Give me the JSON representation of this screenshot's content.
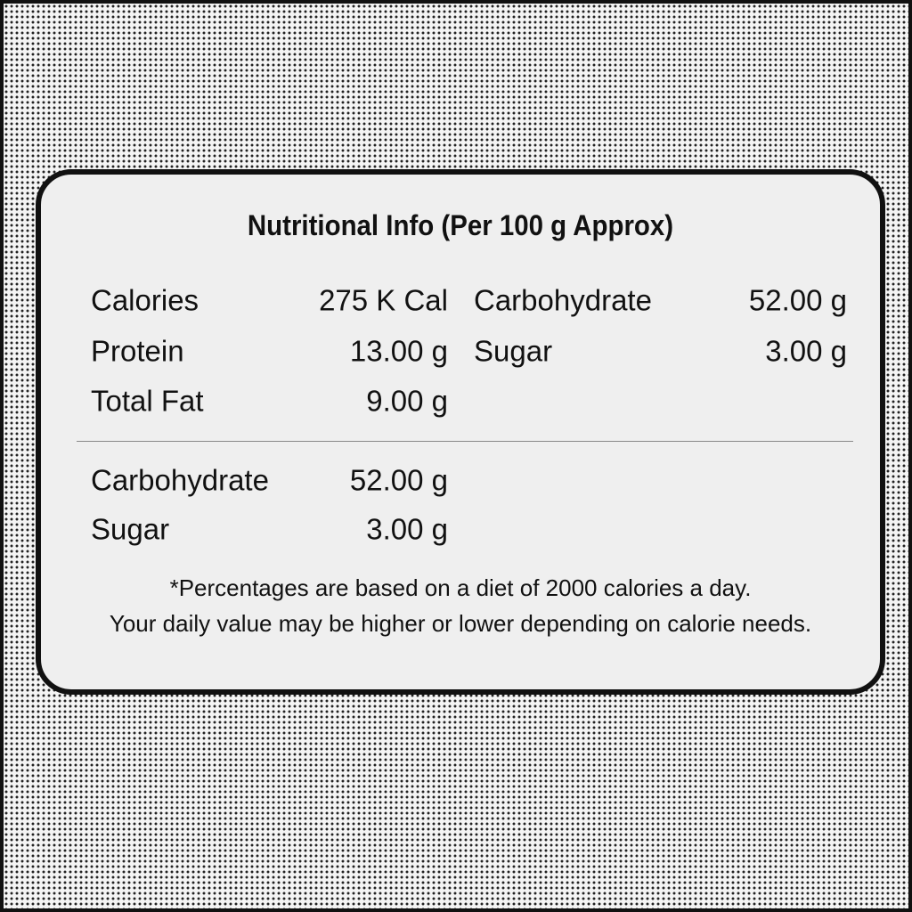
{
  "title": "Nutritional Info (Per 100 g Approx)",
  "left_rows": [
    {
      "label": "Calories",
      "value": "275 K Cal"
    },
    {
      "label": "Protein",
      "value": "13.00 g"
    },
    {
      "label": "Total Fat",
      "value": "9.00 g"
    }
  ],
  "right_rows": [
    {
      "label": "Carbohydrate",
      "value": "52.00 g"
    },
    {
      "label": "Sugar",
      "value": "3.00 g"
    }
  ],
  "lower_rows": [
    {
      "label": "Carbohydrate",
      "value": "52.00 g"
    },
    {
      "label": "Sugar",
      "value": "3.00 g"
    }
  ],
  "footnote": [
    "*Percentages are based on a diet of 2000 calories a day.",
    "Your daily value may be higher or lower depending on calorie needs."
  ]
}
